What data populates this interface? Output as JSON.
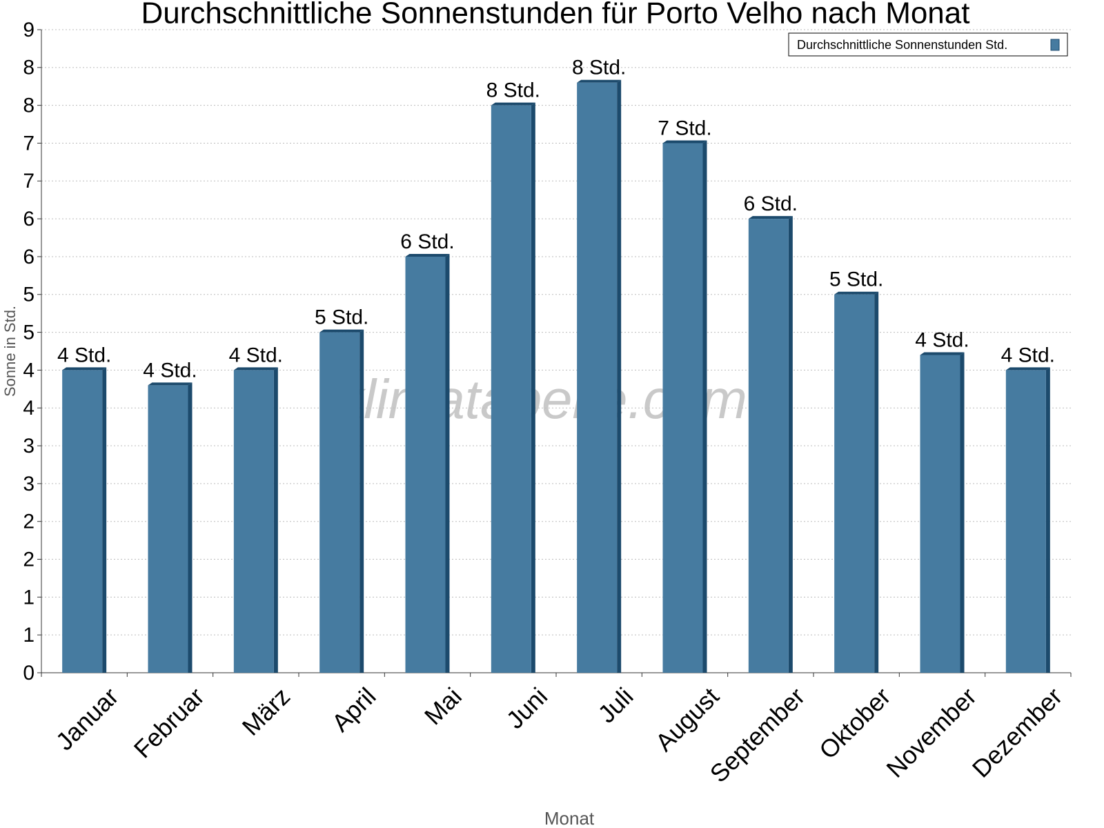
{
  "chart_data": {
    "type": "bar",
    "title": "Durchschnittliche Sonnenstunden für Porto Velho nach Monat",
    "x_label": "Monat",
    "y_label": "Sonne in Std.",
    "watermark": "klimatabelle.com",
    "categories": [
      "Januar",
      "Februar",
      "März",
      "April",
      "Mai",
      "Juni",
      "Juli",
      "August",
      "September",
      "Oktober",
      "November",
      "Dezember"
    ],
    "series": [
      {
        "name": "Durchschnittliche Sonnenstunden Std.",
        "color": "#467ba0",
        "values": [
          4.0,
          3.8,
          4.0,
          4.5,
          5.5,
          7.5,
          7.8,
          7.0,
          6.0,
          5.0,
          4.2,
          4.0
        ],
        "value_labels": [
          "4 Std.",
          "4 Std.",
          "4 Std.",
          "5 Std.",
          "6 Std.",
          "8 Std.",
          "8 Std.",
          "7 Std.",
          "6 Std.",
          "5 Std.",
          "4 Std.",
          "4 Std."
        ]
      }
    ],
    "ylim": [
      0,
      8.5
    ],
    "yticks": [
      0,
      {
        "value": 0.5,
        "label": "1"
      },
      1,
      {
        "value": 1.5,
        "label": "2"
      },
      2,
      {
        "value": 2.5,
        "label": "3"
      },
      3,
      {
        "value": 3.5,
        "label": "4"
      },
      4,
      {
        "value": 4.5,
        "label": "5"
      },
      5,
      {
        "value": 5.5,
        "label": "6"
      },
      6,
      {
        "value": 6.5,
        "label": "7"
      },
      7,
      {
        "value": 7.5,
        "label": "8"
      },
      8,
      {
        "value": 8.5,
        "label": "9"
      }
    ],
    "grid": true,
    "legend": "top-right"
  }
}
